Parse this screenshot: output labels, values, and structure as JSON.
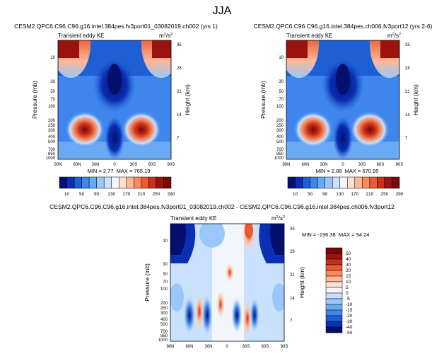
{
  "page_title": "JJA",
  "chart_data": [
    {
      "type": "heatmap",
      "title": "CESM2.QPC6.C96.C96.g16.intel.384pes.fv3port01_03082019.ch002 (yrs 1)",
      "subtitle": "Transient eddy KE",
      "units": "m",
      "units_sup": "2",
      "units_mid": "/s",
      "units_sup2": "2",
      "ylabel": "Pressure (mb)",
      "y2label": "Height (km)",
      "xticks": [
        "90N",
        "60N",
        "30N",
        "0",
        "30S",
        "60S",
        "90S"
      ],
      "yticks": [
        "10",
        "30",
        "50",
        "70",
        "100",
        "200",
        "250",
        "300",
        "400",
        "500",
        "700",
        "850",
        "1000"
      ],
      "y2ticks": [
        "35",
        "28",
        "21",
        "14",
        "7"
      ],
      "stats": "MIN = 2.77  MAX = 765.19",
      "levels": [
        "10",
        "50",
        "90",
        "130",
        "170",
        "210",
        "250",
        "290"
      ]
    },
    {
      "type": "heatmap",
      "title": "CESM2.QPC6.C96.C96.g16.intel.384pes.ch006.fv3port12 (yrs 2-6)",
      "subtitle": "Transient eddy KE",
      "units": "m",
      "units_sup": "2",
      "units_mid": "/s",
      "units_sup2": "2",
      "ylabel": "Pressure (mb)",
      "y2label": "Height (km)",
      "xticks": [
        "90N",
        "60N",
        "30N",
        "0",
        "30S",
        "60S",
        "90S"
      ],
      "yticks": [
        "10",
        "30",
        "50",
        "70",
        "100",
        "200",
        "250",
        "300",
        "400",
        "500",
        "700",
        "850",
        "1000"
      ],
      "y2ticks": [
        "35",
        "28",
        "21",
        "14",
        "7"
      ],
      "stats": "MIN = 2.88  MAX = 670.95",
      "levels": [
        "10",
        "50",
        "90",
        "130",
        "170",
        "210",
        "250",
        "290"
      ]
    },
    {
      "type": "heatmap",
      "title": "CESM2.QPC6.C96.C96.g16.intel.384pes.fv3port01_03082019.ch002 - CESM2.QPC6.C96.C96.g16.intel.384pes.ch006.fv3port12",
      "subtitle": "Transient eddy KE",
      "units": "m",
      "units_sup": "2",
      "units_mid": "/s",
      "units_sup2": "2",
      "ylabel": "Pressure (mb)",
      "y2label": "Height (km)",
      "xticks": [
        "90N",
        "60N",
        "30N",
        "0",
        "30S",
        "60S",
        "90S"
      ],
      "yticks": [
        "10",
        "30",
        "50",
        "70",
        "100",
        "200",
        "250",
        "300",
        "400",
        "500",
        "700",
        "850",
        "1000"
      ],
      "y2ticks": [
        "35",
        "28",
        "21",
        "14",
        "7"
      ],
      "stats": "MIN = -196.38  MAX = 94.24",
      "levels": [
        "50",
        "40",
        "30",
        "20",
        "15",
        "10",
        "5",
        "0",
        "-5",
        "-10",
        "-15",
        "-20",
        "-30",
        "-40",
        "-50"
      ]
    }
  ],
  "colors": {
    "positive_scale": [
      "#05106e",
      "#0b2fb4",
      "#1e5fd6",
      "#3f86ec",
      "#6aaaf4",
      "#9ac8fb",
      "#c9e1fc",
      "#f2f6fb",
      "#fde0cf",
      "#fbb796",
      "#f68b5e",
      "#e85a32",
      "#c9301b",
      "#9c120f",
      "#7a0608"
    ],
    "diff_scale": [
      "#7a0608",
      "#9c120f",
      "#c9301b",
      "#e85a32",
      "#f68b5e",
      "#fbb796",
      "#fde0cf",
      "#f2f6fb",
      "#c9e1fc",
      "#9ac8fb",
      "#6aaaf4",
      "#3f86ec",
      "#1e5fd6",
      "#0b2fb4",
      "#05106e"
    ]
  }
}
